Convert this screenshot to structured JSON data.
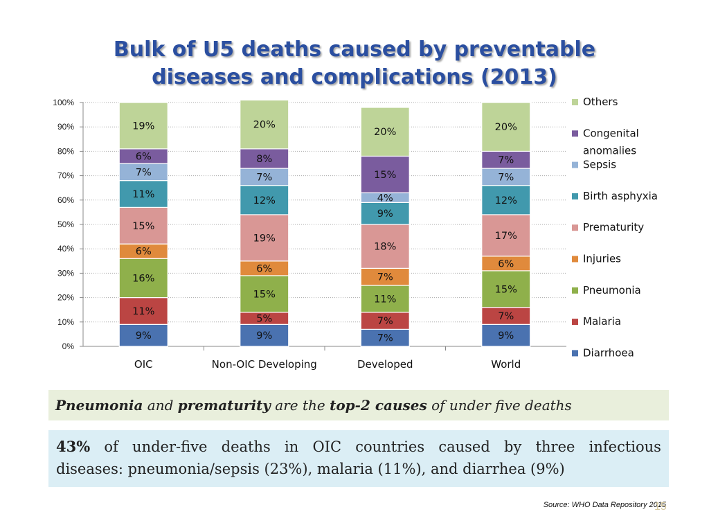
{
  "slide": {
    "title_line1": "Bulk of U5 deaths caused by preventable",
    "title_line2": "diseases and complications (2013)",
    "takeaway": {
      "part1": "Pneumonia",
      "part2": " and ",
      "part3": "prematurity",
      "part4": " are the ",
      "part5": "top-2 causes",
      "part6": " of under five deaths"
    },
    "note": {
      "words_line1": [
        "43%",
        "of",
        "under-five",
        "deaths",
        "in",
        "OIC",
        "countries",
        "caused",
        "by",
        "three",
        "infectious"
      ],
      "line2": "diseases: pneumonia/sepsis (23%), malaria (11%), and diarrhea (9%)"
    },
    "source": "Source: WHO Data Repository 2015",
    "page_number": "15"
  },
  "chart_data": {
    "type": "stacked-bar-100",
    "title": "Bulk of U5 deaths caused by preventable diseases and complications (2013)",
    "categories": [
      "OIC",
      "Non-OIC Developing",
      "Developed",
      "World"
    ],
    "y_ticks": [
      "0%",
      "10%",
      "20%",
      "30%",
      "40%",
      "50%",
      "60%",
      "70%",
      "80%",
      "90%",
      "100%"
    ],
    "ylim": [
      0,
      100
    ],
    "grid": true,
    "legend_position": "right",
    "series": [
      {
        "name": "Diarrhoea",
        "color": "#4a72b0",
        "values": [
          9,
          9,
          7,
          9
        ],
        "labels": [
          "9%",
          "9%",
          "7%",
          "9%"
        ]
      },
      {
        "name": " Malaria",
        "color": "#bb4543",
        "values": [
          11,
          5,
          7,
          7
        ],
        "labels": [
          "11%",
          "5%",
          "7%",
          "7%"
        ]
      },
      {
        "name": "Pneumonia",
        "color": "#8fb04b",
        "values": [
          16,
          15,
          11,
          15
        ],
        "labels": [
          "16%",
          "15%",
          "11%",
          "15%"
        ]
      },
      {
        "name": "Injuries",
        "color": "#e08a3c",
        "values": [
          6,
          6,
          7,
          6
        ],
        "labels": [
          "6%",
          "6%",
          "7%",
          "6%"
        ]
      },
      {
        "name": "Prematurity",
        "color": "#d99795",
        "values": [
          15,
          19,
          18,
          17
        ],
        "labels": [
          "15%",
          "19%",
          "18%",
          "17%"
        ]
      },
      {
        "name": "Birth asphyxia",
        "color": "#4199ad",
        "values": [
          11,
          12,
          9,
          12
        ],
        "labels": [
          "11%",
          "12%",
          "9%",
          "12%"
        ]
      },
      {
        "name": "Sepsis",
        "color": "#95b3d7",
        "values": [
          7,
          7,
          4,
          7
        ],
        "labels": [
          "7%",
          "7%",
          "4%",
          "7%"
        ]
      },
      {
        "name": "Congenital anomalies",
        "legend_lines": [
          "Congenital",
          "anomalies"
        ],
        "color": "#7a5c9e",
        "values": [
          6,
          8,
          15,
          7
        ],
        "labels": [
          "6%",
          "8%",
          "15%",
          "7%"
        ]
      },
      {
        "name": "Others",
        "color": "#bed498",
        "values": [
          19,
          20,
          20,
          20
        ],
        "labels": [
          "19%",
          "20%",
          "20%",
          "20%"
        ]
      }
    ]
  }
}
